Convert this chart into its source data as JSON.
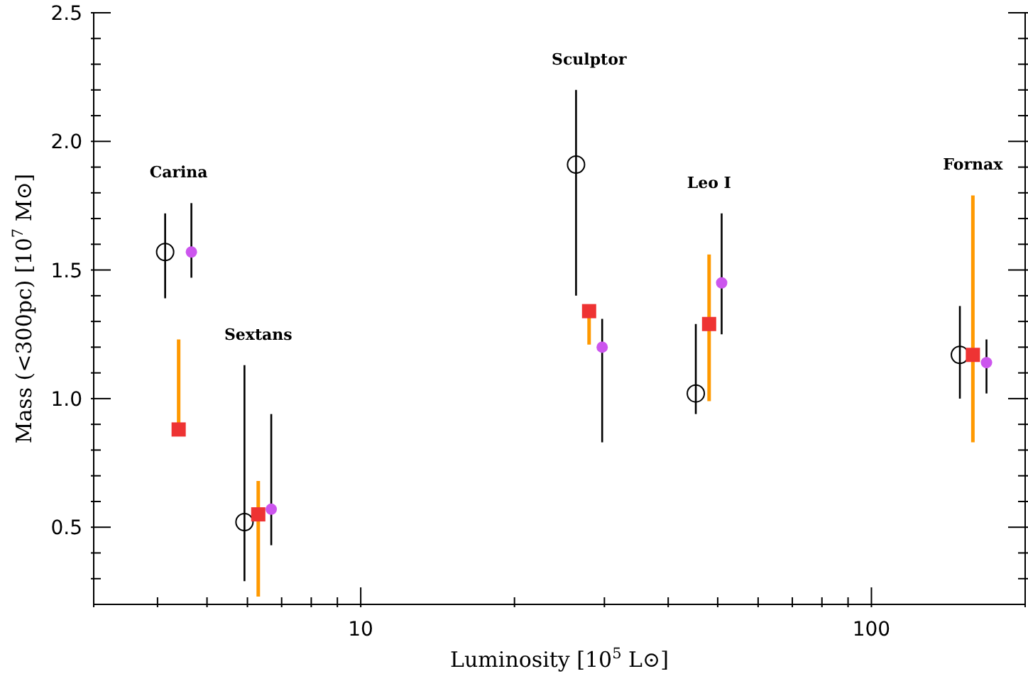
{
  "chart_data": {
    "type": "scatter",
    "xlabel": "Luminosity [10$^{5}$ L⊙]",
    "ylabel": "Mass (<300pc) [10$^{7}$ M⊙]",
    "log": "x",
    "grid": false,
    "legend": false,
    "xlim": [
      3,
      200
    ],
    "ylim": [
      0.2,
      2.5
    ],
    "xticks": [
      {
        "value": 3,
        "label": null
      },
      {
        "value": 4,
        "label": null
      },
      {
        "value": 5,
        "label": null
      },
      {
        "value": 6,
        "label": null
      },
      {
        "value": 7,
        "label": null
      },
      {
        "value": 8,
        "label": null
      },
      {
        "value": 9,
        "label": null
      },
      10,
      {
        "value": 20,
        "label": null
      },
      {
        "value": 30,
        "label": null
      },
      {
        "value": 40,
        "label": null
      },
      {
        "value": 50,
        "label": null
      },
      {
        "value": 60,
        "label": null
      },
      {
        "value": 70,
        "label": null
      },
      {
        "value": 80,
        "label": null
      },
      {
        "value": 90,
        "label": null
      },
      100,
      {
        "value": 200,
        "label": null
      }
    ],
    "yticks": [
      {
        "value": 0.3,
        "label": null
      },
      {
        "value": 0.4,
        "label": null
      },
      {
        "value": 0.5,
        "label": "0.5"
      },
      {
        "value": 0.6,
        "label": null
      },
      {
        "value": 0.7,
        "label": null
      },
      {
        "value": 0.8,
        "label": null
      },
      {
        "value": 0.9,
        "label": null
      },
      {
        "value": 1,
        "label": "1.0"
      },
      {
        "value": 1.1,
        "label": null
      },
      {
        "value": 1.2,
        "label": null
      },
      {
        "value": 1.3,
        "label": null
      },
      {
        "value": 1.4,
        "label": null
      },
      {
        "value": 1.5,
        "label": "1.5"
      },
      {
        "value": 1.6,
        "label": null
      },
      {
        "value": 1.7,
        "label": null
      },
      {
        "value": 1.8,
        "label": null
      },
      {
        "value": 1.9,
        "label": null
      },
      {
        "value": 2,
        "label": "2.0"
      },
      {
        "value": 2.1,
        "label": null
      },
      {
        "value": 2.2,
        "label": null
      },
      {
        "value": 2.3,
        "label": null
      },
      {
        "value": 2.4,
        "label": null
      },
      {
        "value": 2.5,
        "label": "2.5"
      }
    ],
    "series": [
      {
        "color": "#000000",
        "marker": "circle",
        "x": [
          4.14,
          5.92,
          26.4,
          45.3,
          149
        ],
        "values": [
          1.57,
          0.52,
          1.91,
          1.02,
          1.17
        ],
        "errors": [
          [
            1.39,
            1.72
          ],
          [
            0.29,
            1.13
          ],
          [
            1.4,
            2.2
          ],
          [
            0.94,
            1.29
          ],
          [
            1.0,
            1.36
          ]
        ]
      },
      {
        "color": "#ee3333",
        "marker": "square",
        "x": [
          4.4,
          6.3,
          28.0,
          48.1,
          158
        ],
        "values": [
          0.88,
          0.55,
          1.34,
          1.29,
          1.17
        ],
        "errors": [
          [
            0.88,
            1.23
          ],
          [
            0.23,
            0.68
          ],
          [
            1.21,
            1.34
          ],
          [
            0.99,
            1.56
          ],
          [
            0.83,
            1.79
          ]
        ]
      },
      {
        "color": "#cc55ee",
        "marker": "circle",
        "x": [
          4.66,
          6.68,
          29.7,
          50.9,
          168
        ],
        "values": [
          1.57,
          0.57,
          1.2,
          1.45,
          1.14
        ],
        "errors": [
          [
            1.47,
            1.76
          ],
          [
            0.43,
            0.94
          ],
          [
            0.83,
            1.31
          ],
          [
            1.25,
            1.72
          ],
          [
            1.02,
            1.23
          ]
        ]
      }
    ],
    "annotations": [
      "Carina",
      "Sextans",
      "Sculptor",
      "Leo I",
      "Fornax"
    ]
  }
}
